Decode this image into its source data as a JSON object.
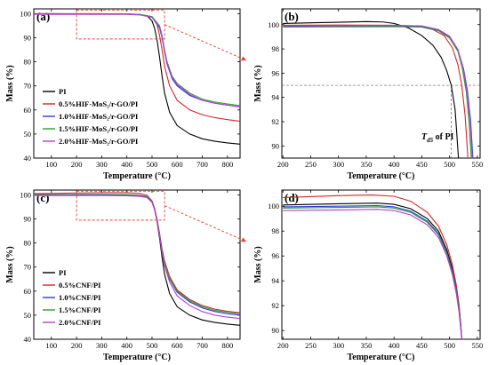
{
  "chart_data": [
    {
      "panel_label": "(a)",
      "type": "line",
      "xlabel": "Temperature (°C)",
      "ylabel": "Mass (%)",
      "xlim": [
        30,
        850
      ],
      "ylim": [
        40,
        102
      ],
      "x_ticks": [
        100,
        200,
        300,
        400,
        500,
        600,
        700,
        800
      ],
      "y_ticks": [
        40,
        50,
        60,
        70,
        80,
        90,
        100
      ],
      "legend_position": "lower-left",
      "annotations": [],
      "series": [
        {
          "name": "PI",
          "color": "#000000",
          "x": [
            30,
            100,
            200,
            300,
            400,
            450,
            480,
            500,
            510,
            520,
            530,
            540,
            550,
            570,
            600,
            650,
            700,
            750,
            800,
            850
          ],
          "y": [
            100,
            100,
            99.9,
            99.9,
            99.8,
            99.6,
            99.2,
            97,
            94,
            89,
            82,
            74,
            67,
            59,
            53.5,
            50,
            48,
            47,
            46.3,
            45.8
          ]
        },
        {
          "name": "0.5%HIF-MoS₂/r-GO/PI",
          "color": "#d62728",
          "x": [
            30,
            100,
            200,
            300,
            400,
            450,
            500,
            520,
            530,
            540,
            550,
            570,
            600,
            650,
            700,
            750,
            800,
            850
          ],
          "y": [
            100,
            100,
            100,
            100,
            99.9,
            99.7,
            98.5,
            95.5,
            91,
            85,
            78,
            70,
            64,
            60,
            58,
            56.8,
            56,
            55.3
          ]
        },
        {
          "name": "1.0%HIF-MoS₂/r-GO/PI",
          "color": "#2b3cd6",
          "x": [
            30,
            100,
            200,
            300,
            400,
            450,
            500,
            530,
            540,
            550,
            560,
            580,
            600,
            650,
            700,
            750,
            800,
            850
          ],
          "y": [
            99.8,
            99.8,
            99.8,
            99.8,
            99.8,
            99.6,
            98.6,
            94,
            90,
            84,
            79,
            73,
            70,
            66,
            64,
            62.8,
            62,
            61.2
          ]
        },
        {
          "name": "1.5%HIF-MoS₂/r-GO/PI",
          "color": "#2ca02c",
          "x": [
            30,
            100,
            200,
            300,
            400,
            450,
            500,
            530,
            540,
            550,
            560,
            580,
            600,
            650,
            700,
            750,
            800,
            850
          ],
          "y": [
            99.9,
            99.9,
            99.9,
            99.9,
            99.9,
            99.7,
            98.8,
            95,
            91,
            85,
            80,
            74,
            71,
            67,
            64.5,
            63.3,
            62.5,
            61.8
          ]
        },
        {
          "name": "2.0%HIF-MoS₂/r-GO/PI",
          "color": "#b83cd6",
          "x": [
            30,
            100,
            200,
            300,
            400,
            450,
            500,
            530,
            540,
            550,
            560,
            580,
            600,
            650,
            700,
            750,
            800,
            850
          ],
          "y": [
            99.7,
            99.7,
            99.7,
            99.7,
            99.7,
            99.5,
            98.5,
            94.5,
            90.5,
            84.5,
            79.5,
            73.5,
            70.5,
            66.5,
            64,
            62.8,
            62,
            61.3
          ]
        }
      ]
    },
    {
      "panel_label": "(b)",
      "type": "line",
      "xlabel": "Temperature (°C)",
      "ylabel": "Mass (%)",
      "xlim": [
        198,
        555
      ],
      "ylim": [
        89,
        101.3
      ],
      "x_ticks": [
        200,
        250,
        300,
        350,
        400,
        450,
        500,
        550
      ],
      "y_ticks": [
        90,
        92,
        94,
        96,
        98,
        100
      ],
      "reference_line_y": 95,
      "annotations": [
        {
          "text": "T",
          "subscript": "d5",
          "suffix": " of PI"
        }
      ],
      "series": [
        {
          "name": "PI",
          "color": "#000000",
          "x": [
            200,
            250,
            300,
            350,
            380,
            400,
            425,
            450,
            470,
            485,
            495,
            503,
            510,
            516
          ],
          "y": [
            100.1,
            100.15,
            100.2,
            100.25,
            100.22,
            100.1,
            99.75,
            99.1,
            98.3,
            97.3,
            96.2,
            95,
            93,
            89
          ]
        },
        {
          "name": "0.5%HIF-MoS₂/r-GO/PI",
          "color": "#d62728",
          "x": [
            200,
            300,
            400,
            440,
            470,
            490,
            505,
            515,
            522,
            528,
            533
          ],
          "y": [
            99.95,
            99.97,
            99.95,
            99.9,
            99.6,
            99.1,
            98.1,
            96.7,
            95,
            92.5,
            89
          ]
        },
        {
          "name": "1.0%HIF-MoS₂/r-GO/PI",
          "color": "#2b3cd6",
          "x": [
            200,
            300,
            400,
            450,
            480,
            500,
            515,
            525,
            532,
            538,
            542
          ],
          "y": [
            99.85,
            99.87,
            99.88,
            99.85,
            99.55,
            99.0,
            97.9,
            96.4,
            94.6,
            92,
            89
          ]
        },
        {
          "name": "1.5%HIF-MoS₂/r-GO/PI",
          "color": "#2ca02c",
          "x": [
            200,
            300,
            400,
            450,
            480,
            500,
            515,
            523,
            530,
            535,
            539
          ],
          "y": [
            99.8,
            99.82,
            99.83,
            99.8,
            99.5,
            98.9,
            97.8,
            96.4,
            94.5,
            92,
            89
          ]
        },
        {
          "name": "2.0%HIF-MoS₂/r-GO/PI",
          "color": "#b83cd6",
          "x": [
            200,
            300,
            400,
            450,
            480,
            500,
            515,
            524,
            531,
            537,
            541
          ],
          "y": [
            99.9,
            99.92,
            99.93,
            99.9,
            99.6,
            99.05,
            97.95,
            96.5,
            94.6,
            92,
            89
          ]
        }
      ]
    },
    {
      "panel_label": "(c)",
      "type": "line",
      "xlabel": "Temperature (°C)",
      "ylabel": "Mass (%)",
      "xlim": [
        30,
        850
      ],
      "ylim": [
        40,
        102
      ],
      "x_ticks": [
        100,
        200,
        300,
        400,
        500,
        600,
        700,
        800
      ],
      "y_ticks": [
        40,
        50,
        60,
        70,
        80,
        90,
        100
      ],
      "legend_position": "lower-left",
      "annotations": [],
      "series": [
        {
          "name": "PI",
          "color": "#000000",
          "x": [
            30,
            100,
            200,
            300,
            400,
            450,
            480,
            500,
            510,
            520,
            530,
            540,
            550,
            570,
            600,
            650,
            700,
            750,
            800,
            850
          ],
          "y": [
            100,
            100,
            99.9,
            99.9,
            99.8,
            99.6,
            99.2,
            97,
            94,
            89,
            82,
            74,
            67,
            59,
            53.5,
            50,
            48,
            47,
            46.3,
            45.8
          ]
        },
        {
          "name": "0.5%CNF/PI",
          "color": "#d62728",
          "x": [
            30,
            100,
            200,
            300,
            400,
            450,
            480,
            500,
            510,
            520,
            530,
            540,
            550,
            570,
            600,
            650,
            700,
            750,
            800,
            850
          ],
          "y": [
            100.5,
            100.6,
            100.8,
            100.9,
            100.9,
            100.6,
            99.8,
            97.5,
            94.5,
            90,
            84,
            77.5,
            72.5,
            66,
            60.5,
            56.5,
            54,
            52.5,
            51.6,
            51
          ]
        },
        {
          "name": "1.0%CNF/PI",
          "color": "#2b3cd6",
          "x": [
            30,
            100,
            200,
            300,
            400,
            450,
            480,
            500,
            510,
            520,
            530,
            540,
            550,
            570,
            600,
            650,
            700,
            750,
            800,
            850
          ],
          "y": [
            100.1,
            100.1,
            100.2,
            100.2,
            100.1,
            99.8,
            99.3,
            97.2,
            94.2,
            89.5,
            83.5,
            76.5,
            71.5,
            65,
            59.5,
            55.5,
            53,
            51.5,
            50.6,
            50
          ]
        },
        {
          "name": "1.5%CNF/PI",
          "color": "#2ca02c",
          "x": [
            30,
            100,
            200,
            300,
            400,
            450,
            480,
            500,
            510,
            520,
            530,
            540,
            550,
            570,
            600,
            650,
            700,
            750,
            800,
            850
          ],
          "y": [
            100,
            100,
            100,
            100,
            99.9,
            99.7,
            99.2,
            97.1,
            94.1,
            89.4,
            83.4,
            76.5,
            71.5,
            65.3,
            60,
            56,
            53.5,
            52,
            51.2,
            50.6
          ]
        },
        {
          "name": "2.0%CNF/PI",
          "color": "#b83cd6",
          "x": [
            30,
            100,
            200,
            300,
            400,
            450,
            480,
            500,
            510,
            520,
            530,
            540,
            550,
            570,
            600,
            650,
            700,
            750,
            800,
            850
          ],
          "y": [
            99.7,
            99.7,
            99.7,
            99.7,
            99.6,
            99.4,
            98.9,
            96.9,
            93.9,
            89.2,
            83,
            75.8,
            70.5,
            63.8,
            58,
            54,
            51.5,
            50,
            49.2,
            48.6
          ]
        }
      ]
    },
    {
      "panel_label": "(d)",
      "type": "line",
      "xlabel": "Temperature (°C)",
      "ylabel": "Mass (%)",
      "xlim": [
        198,
        555
      ],
      "ylim": [
        89.3,
        101.3
      ],
      "x_ticks": [
        200,
        250,
        300,
        350,
        400,
        450,
        500,
        550
      ],
      "y_ticks": [
        90,
        92,
        94,
        96,
        98,
        100
      ],
      "annotations": [],
      "series": [
        {
          "name": "PI",
          "color": "#000000",
          "x": [
            200,
            300,
            370,
            400,
            430,
            460,
            480,
            495,
            505,
            512,
            517,
            520,
            522
          ],
          "y": [
            100.1,
            100.2,
            100.25,
            100.15,
            99.8,
            99,
            98,
            96.5,
            95,
            93.5,
            92,
            90.5,
            89.3
          ]
        },
        {
          "name": "0.5%CNF/PI",
          "color": "#d62728",
          "x": [
            200,
            300,
            360,
            400,
            430,
            460,
            480,
            495,
            505,
            512,
            517,
            520,
            522
          ],
          "y": [
            100.7,
            100.85,
            100.9,
            100.8,
            100.4,
            99.5,
            98.4,
            96.9,
            95.3,
            93.7,
            92.1,
            90.6,
            89.3
          ]
        },
        {
          "name": "1.0%CNF/PI",
          "color": "#2b3cd6",
          "x": [
            200,
            300,
            370,
            400,
            430,
            460,
            480,
            495,
            505,
            512,
            517,
            520,
            522
          ],
          "y": [
            99.95,
            100.0,
            100.05,
            99.95,
            99.6,
            98.8,
            97.8,
            96.3,
            94.8,
            93.3,
            91.8,
            90.4,
            89.3
          ]
        },
        {
          "name": "1.5%CNF/PI",
          "color": "#2ca02c",
          "x": [
            200,
            300,
            370,
            400,
            430,
            460,
            480,
            495,
            505,
            512,
            517,
            520,
            522
          ],
          "y": [
            99.85,
            99.9,
            99.95,
            99.85,
            99.5,
            98.7,
            97.7,
            96.2,
            94.7,
            93.2,
            91.7,
            90.3,
            89.3
          ]
        },
        {
          "name": "2.0%CNF/PI",
          "color": "#b83cd6",
          "x": [
            200,
            300,
            370,
            400,
            430,
            460,
            480,
            495,
            505,
            512,
            517,
            520,
            522
          ],
          "y": [
            99.65,
            99.7,
            99.75,
            99.65,
            99.3,
            98.5,
            97.5,
            96.0,
            94.5,
            93.0,
            91.5,
            90.2,
            89.3
          ]
        }
      ]
    }
  ]
}
